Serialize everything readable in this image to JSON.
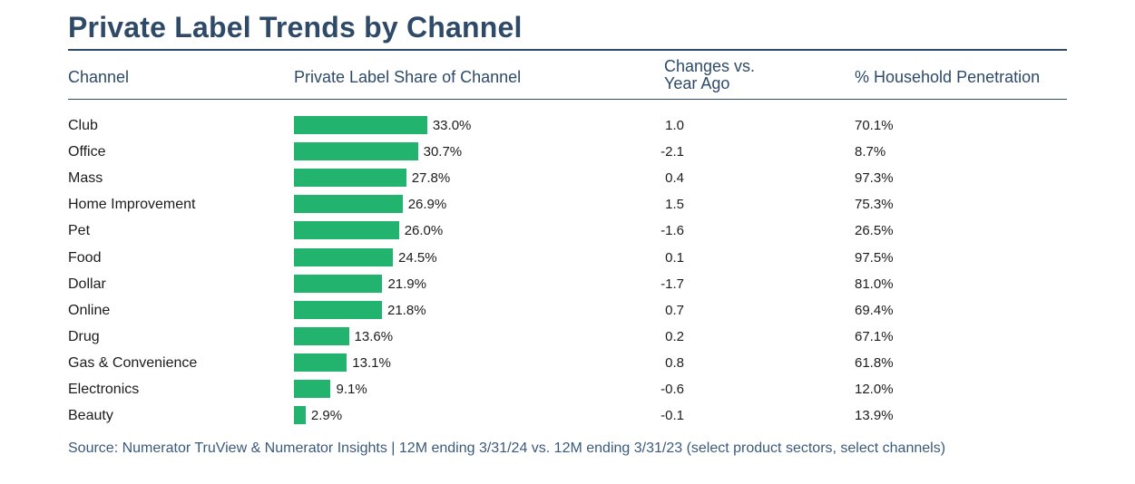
{
  "title": "Private Label Trends by Channel",
  "headers": {
    "channel": "Channel",
    "share": "Private Label Share of Channel",
    "change_line1": "Changes vs.",
    "change_line2": "Year Ago",
    "penetration": "% Household Penetration"
  },
  "colors": {
    "bar": "#22b46e",
    "header": "#2e4a68",
    "source": "#3a5a7c"
  },
  "chart_data": {
    "type": "table",
    "rows": [
      {
        "channel": "Club",
        "share": 33.0,
        "share_label": "33.0%",
        "change": "1.0",
        "penetration": "70.1%"
      },
      {
        "channel": "Office",
        "share": 30.7,
        "share_label": "30.7%",
        "change": "-2.1",
        "penetration": "8.7%"
      },
      {
        "channel": "Mass",
        "share": 27.8,
        "share_label": "27.8%",
        "change": "0.4",
        "penetration": "97.3%"
      },
      {
        "channel": "Home Improvement",
        "share": 26.9,
        "share_label": "26.9%",
        "change": "1.5",
        "penetration": "75.3%"
      },
      {
        "channel": "Pet",
        "share": 26.0,
        "share_label": "26.0%",
        "change": "-1.6",
        "penetration": "26.5%"
      },
      {
        "channel": "Food",
        "share": 24.5,
        "share_label": "24.5%",
        "change": "0.1",
        "penetration": "97.5%"
      },
      {
        "channel": "Dollar",
        "share": 21.9,
        "share_label": "21.9%",
        "change": "-1.7",
        "penetration": "81.0%"
      },
      {
        "channel": "Online",
        "share": 21.8,
        "share_label": "21.8%",
        "change": "0.7",
        "penetration": "69.4%"
      },
      {
        "channel": "Drug",
        "share": 13.6,
        "share_label": "13.6%",
        "change": "0.2",
        "penetration": "67.1%"
      },
      {
        "channel": "Gas & Convenience",
        "share": 13.1,
        "share_label": "13.1%",
        "change": "0.8",
        "penetration": "61.8%"
      },
      {
        "channel": "Electronics",
        "share": 9.1,
        "share_label": "9.1%",
        "change": "-0.6",
        "penetration": "12.0%"
      },
      {
        "channel": "Beauty",
        "share": 2.9,
        "share_label": "2.9%",
        "change": "-0.1",
        "penetration": "13.9%"
      }
    ]
  },
  "source": "Source: Numerator TruView & Numerator Insights | 12M ending 3/31/24 vs. 12M ending 3/31/23 (select product sectors, select channels)"
}
